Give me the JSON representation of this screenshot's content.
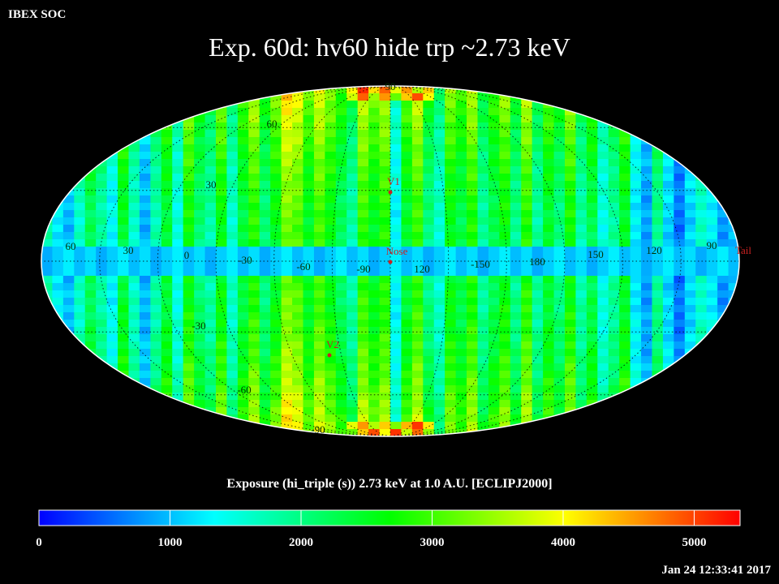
{
  "header": {
    "left_label": "IBEX SOC",
    "title": "Exp.   60d: hv60 hide trp ~2.73 keV",
    "timestamp": "Jan 24 12:33:41 2017"
  },
  "colorbar": {
    "title": "Exposure (hi_triple (s))  2.73 keV at 1.0 A.U. [ECLIPJ2000]",
    "ticks": [
      "0",
      "1000",
      "2000",
      "3000",
      "4000",
      "5000"
    ],
    "tick_values": [
      0,
      1000,
      2000,
      3000,
      4000,
      5000
    ],
    "range": [
      0,
      5350
    ],
    "colors": [
      "#0000ff",
      "#0080ff",
      "#00ffff",
      "#00ff80",
      "#00ff00",
      "#80ff00",
      "#ffff00",
      "#ff8000",
      "#ff0000"
    ]
  },
  "chart_data": {
    "type": "heatmap",
    "projection": "mollweide",
    "frame": "ECLIPJ2000",
    "center_longitude": 255,
    "longitude_labels": [
      "60",
      "30",
      "0",
      "-30",
      "-60",
      "-90",
      "120",
      "-150",
      "180",
      "150",
      "120",
      "90"
    ],
    "longitude_label_values": [
      60,
      30,
      0,
      -30,
      -60,
      -90,
      120,
      -150,
      180,
      150,
      120,
      90
    ],
    "latitude_labels": [
      "90",
      "60",
      "30",
      "-30",
      "-60",
      "-90"
    ],
    "latitude_label_values": [
      90,
      60,
      30,
      -30,
      -60,
      -90
    ],
    "markers": [
      {
        "label": "V1",
        "lon": 255,
        "lat": 34
      },
      {
        "label": "Nose",
        "lon": 255,
        "lat": 5
      },
      {
        "label": "V2",
        "lon": 290,
        "lat": -34
      },
      {
        "label": "Tail",
        "lon": 75,
        "lat": 5
      }
    ],
    "strip_exposure_columns": [
      2100,
      1500,
      1200,
      1800,
      2400,
      2000,
      1500,
      2600,
      1800,
      1100,
      1900,
      2500,
      1600,
      2800,
      2200,
      1900,
      2700,
      1700,
      2400,
      2900,
      2100,
      2600,
      3300,
      3100,
      2500,
      3000,
      2600,
      2200,
      1800,
      2900,
      2500,
      2800,
      1300,
      2400,
      2900,
      2000,
      1600,
      2600,
      2300,
      2800,
      1900,
      2300,
      2700,
      2000,
      2900,
      1900,
      2500,
      2100,
      2800,
      1900,
      2400,
      1600,
      2000,
      2600,
      1400,
      1000,
      2100,
      1300,
      800,
      1300,
      1800,
      1500,
      1000,
      1300
    ],
    "ecliptic_band_exposure": 900,
    "ecliptic_band_lat_range": [
      -7,
      6
    ],
    "color_scale_range": [
      0,
      5350
    ]
  }
}
